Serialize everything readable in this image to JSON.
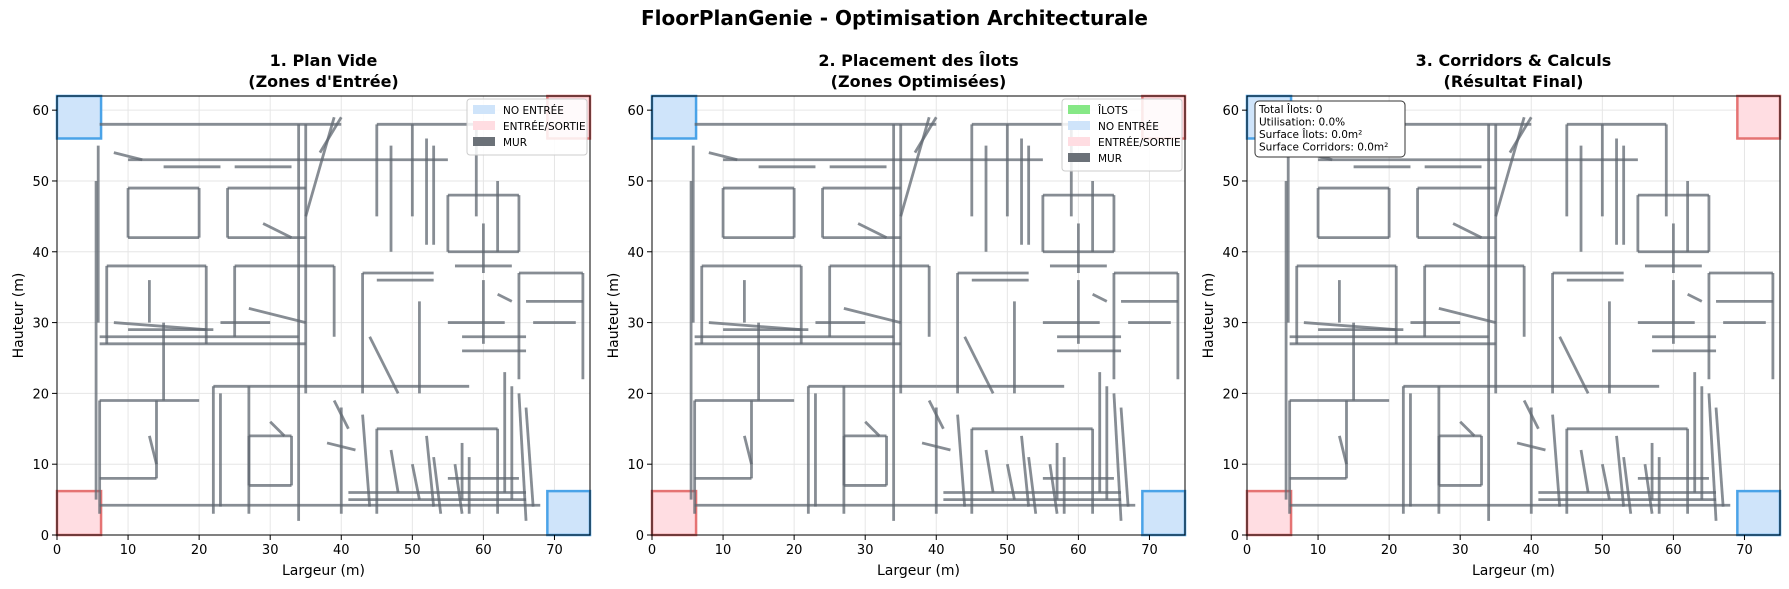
{
  "figure": {
    "title": "FloorPlanGenie - Optimisation Architecturale"
  },
  "colors": {
    "wall": "#5f6770",
    "no_entree_fill": "#cfe4fa",
    "no_entree_edge": "#4aa3e8",
    "entree_fill": "#ffdde2",
    "entree_edge": "#e57373",
    "ilots": "#86e886",
    "mur_legend": "#6b7178",
    "grid": "#e6e6e6"
  },
  "chart_data": [
    {
      "type": "floorplan",
      "title_line1": "1. Plan Vide",
      "title_line2": "(Zones d'Entrée)",
      "xlabel": "Largeur (m)",
      "ylabel": "Hauteur (m)",
      "xlim": [
        0,
        75
      ],
      "ylim": [
        0,
        62
      ],
      "xticks": [
        0,
        10,
        20,
        30,
        40,
        50,
        60,
        70
      ],
      "yticks": [
        0,
        10,
        20,
        30,
        40,
        50,
        60
      ],
      "grid": true,
      "legend_position": "top-right",
      "legend": [
        {
          "label": "NO ENTRÉE",
          "color": "#cfe4fa"
        },
        {
          "label": "ENTRÉE/SORTIE",
          "color": "#ffdde2"
        },
        {
          "label": "MUR",
          "color": "#6b7178"
        }
      ]
    },
    {
      "type": "floorplan",
      "title_line1": "2. Placement des Îlots",
      "title_line2": "(Zones Optimisées)",
      "xlabel": "Largeur (m)",
      "ylabel": "Hauteur (m)",
      "xlim": [
        0,
        75
      ],
      "ylim": [
        0,
        62
      ],
      "xticks": [
        0,
        10,
        20,
        30,
        40,
        50,
        60,
        70
      ],
      "yticks": [
        0,
        10,
        20,
        30,
        40,
        50,
        60
      ],
      "grid": true,
      "legend_position": "top-right",
      "legend": [
        {
          "label": "ÎLOTS",
          "color": "#86e886"
        },
        {
          "label": "NO ENTRÉE",
          "color": "#cfe4fa"
        },
        {
          "label": "ENTRÉE/SORTIE",
          "color": "#ffdde2"
        },
        {
          "label": "MUR",
          "color": "#6b7178"
        }
      ]
    },
    {
      "type": "floorplan",
      "title_line1": "3. Corridors & Calculs",
      "title_line2": "(Résultat Final)",
      "xlabel": "Largeur (m)",
      "ylabel": "Hauteur (m)",
      "xlim": [
        0,
        75
      ],
      "ylim": [
        0,
        62
      ],
      "xticks": [
        0,
        10,
        20,
        30,
        40,
        50,
        60,
        70
      ],
      "yticks": [
        0,
        10,
        20,
        30,
        40,
        50,
        60
      ],
      "grid": true,
      "legend_position": "top-left",
      "stats": [
        "Total Îlots: 0",
        "Utilisation: 0.0%",
        "Surface Îlots: 0.0m²",
        "Surface Corridors: 0.0m²"
      ]
    }
  ],
  "zones": [
    {
      "kind": "no_entree",
      "x": [
        0,
        6.2
      ],
      "y": [
        56,
        62
      ]
    },
    {
      "kind": "entree",
      "x": [
        69,
        75
      ],
      "y": [
        56,
        62
      ]
    },
    {
      "kind": "entree",
      "x": [
        0,
        6.2
      ],
      "y": [
        0,
        6.2
      ]
    },
    {
      "kind": "no_entree",
      "x": [
        69,
        75
      ],
      "y": [
        0,
        6.2
      ]
    }
  ],
  "walls": [
    [
      6,
      58,
      40,
      58
    ],
    [
      6,
      4.2,
      68,
      4.2
    ],
    [
      5.5,
      5,
      5.5,
      50
    ],
    [
      5.8,
      55,
      5.8,
      30
    ],
    [
      10,
      53,
      55,
      53
    ],
    [
      34,
      58,
      34,
      2
    ],
    [
      35,
      58,
      35,
      20
    ],
    [
      37,
      54,
      40,
      59
    ],
    [
      35,
      45,
      39,
      59
    ],
    [
      10,
      49,
      20,
      49
    ],
    [
      10,
      49,
      10,
      42
    ],
    [
      10,
      42,
      20,
      42
    ],
    [
      20,
      49,
      20,
      42
    ],
    [
      24,
      49,
      35,
      49
    ],
    [
      24,
      49,
      24,
      42
    ],
    [
      24,
      42,
      35,
      42
    ],
    [
      29,
      44,
      33,
      42
    ],
    [
      45,
      58,
      59,
      58
    ],
    [
      45,
      58,
      45,
      45
    ],
    [
      59,
      58,
      59,
      45
    ],
    [
      47,
      55,
      47,
      40
    ],
    [
      50,
      58,
      50,
      45
    ],
    [
      52,
      56,
      52,
      41
    ],
    [
      53,
      55,
      53,
      41
    ],
    [
      55,
      48,
      65,
      48
    ],
    [
      55,
      48,
      55,
      40
    ],
    [
      55,
      40,
      65,
      40
    ],
    [
      65,
      48,
      65,
      40
    ],
    [
      60,
      44,
      60,
      37
    ],
    [
      62,
      50,
      62,
      40
    ],
    [
      7,
      38,
      21,
      38
    ],
    [
      7,
      38,
      7,
      27
    ],
    [
      21,
      38,
      21,
      27
    ],
    [
      15,
      30,
      15,
      19
    ],
    [
      13,
      36,
      13,
      30
    ],
    [
      25,
      38,
      39,
      38
    ],
    [
      25,
      38,
      25,
      28
    ],
    [
      39,
      38,
      39,
      28
    ],
    [
      27,
      32,
      35,
      30
    ],
    [
      43,
      37,
      53,
      37
    ],
    [
      43,
      37,
      43,
      20
    ],
    [
      45,
      36,
      53,
      36
    ],
    [
      51,
      33,
      51,
      20
    ],
    [
      44,
      28,
      48,
      20
    ],
    [
      65,
      37,
      74,
      37
    ],
    [
      65,
      37,
      65,
      22
    ],
    [
      74,
      37,
      74,
      22
    ],
    [
      66,
      33,
      74,
      33
    ],
    [
      67,
      30,
      73,
      30
    ],
    [
      56,
      38,
      64,
      38
    ],
    [
      55,
      30,
      63,
      30
    ],
    [
      57,
      26,
      66,
      26
    ],
    [
      57,
      28,
      66,
      28
    ],
    [
      6,
      27,
      35,
      27
    ],
    [
      6,
      28,
      34,
      28
    ],
    [
      8,
      30,
      21,
      29
    ],
    [
      10,
      29,
      22,
      29
    ],
    [
      23,
      30,
      30,
      30
    ],
    [
      6,
      19,
      20,
      19
    ],
    [
      6,
      19,
      6,
      3
    ],
    [
      14,
      19,
      14,
      8
    ],
    [
      6,
      8,
      14,
      8
    ],
    [
      13,
      14,
      14,
      10
    ],
    [
      22,
      21,
      40,
      21
    ],
    [
      22,
      21,
      22,
      3
    ],
    [
      23,
      20,
      23,
      4
    ],
    [
      27,
      21,
      27,
      3
    ],
    [
      30,
      16,
      32,
      14
    ],
    [
      27,
      14,
      33,
      14
    ],
    [
      27,
      14,
      27,
      7
    ],
    [
      33,
      14,
      33,
      7
    ],
    [
      27,
      7,
      33,
      7
    ],
    [
      40,
      18,
      40,
      3
    ],
    [
      39,
      19,
      41,
      15
    ],
    [
      38,
      13,
      42,
      12
    ],
    [
      43,
      17,
      44,
      4
    ],
    [
      45,
      15,
      62,
      15
    ],
    [
      45,
      15,
      45,
      3
    ],
    [
      62,
      15,
      62,
      3
    ],
    [
      47,
      12,
      48,
      6
    ],
    [
      50,
      10,
      51,
      5
    ],
    [
      52,
      14,
      53,
      4
    ],
    [
      53,
      11,
      54,
      3
    ],
    [
      56,
      10,
      57,
      3
    ],
    [
      57,
      13,
      57,
      5
    ],
    [
      58,
      11,
      58,
      3
    ],
    [
      65,
      20,
      66,
      2
    ],
    [
      63,
      23,
      63,
      6
    ],
    [
      64,
      21,
      64,
      5
    ],
    [
      66,
      18,
      67,
      4
    ],
    [
      41,
      5,
      66,
      5
    ],
    [
      41,
      6,
      66,
      6
    ],
    [
      55,
      8,
      65,
      8
    ],
    [
      40,
      21,
      58,
      21
    ],
    [
      60,
      36,
      60,
      27
    ],
    [
      62,
      34,
      64,
      33
    ],
    [
      8,
      54,
      12,
      53
    ],
    [
      15,
      52,
      23,
      52
    ],
    [
      25,
      52,
      33,
      52
    ]
  ]
}
